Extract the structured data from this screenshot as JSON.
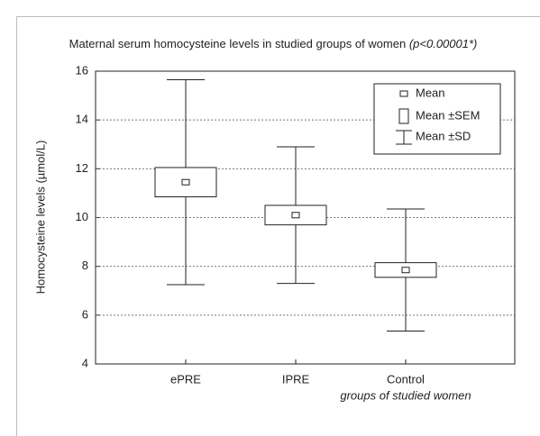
{
  "chart_data": {
    "type": "box",
    "title": "Maternal serum homocysteine levels in studied groups of women",
    "title_note": "(p<0.00001*)",
    "x_label": "groups of studied women",
    "y_label": "Homocysteine levels (µmol/L)",
    "categories": [
      "ePRE",
      "IPRE",
      "Control"
    ],
    "mean": [
      11.45,
      10.1,
      7.85
    ],
    "sem": [
      0.6,
      0.4,
      0.3
    ],
    "sd": [
      4.2,
      2.8,
      2.5
    ],
    "legend": [
      "Mean",
      "Mean ±SEM",
      "Mean ±SD"
    ],
    "legend_position": "upper right",
    "ylim": [
      4,
      16
    ],
    "yticks": [
      4,
      6,
      8,
      10,
      12,
      14,
      16
    ],
    "grid": true
  }
}
